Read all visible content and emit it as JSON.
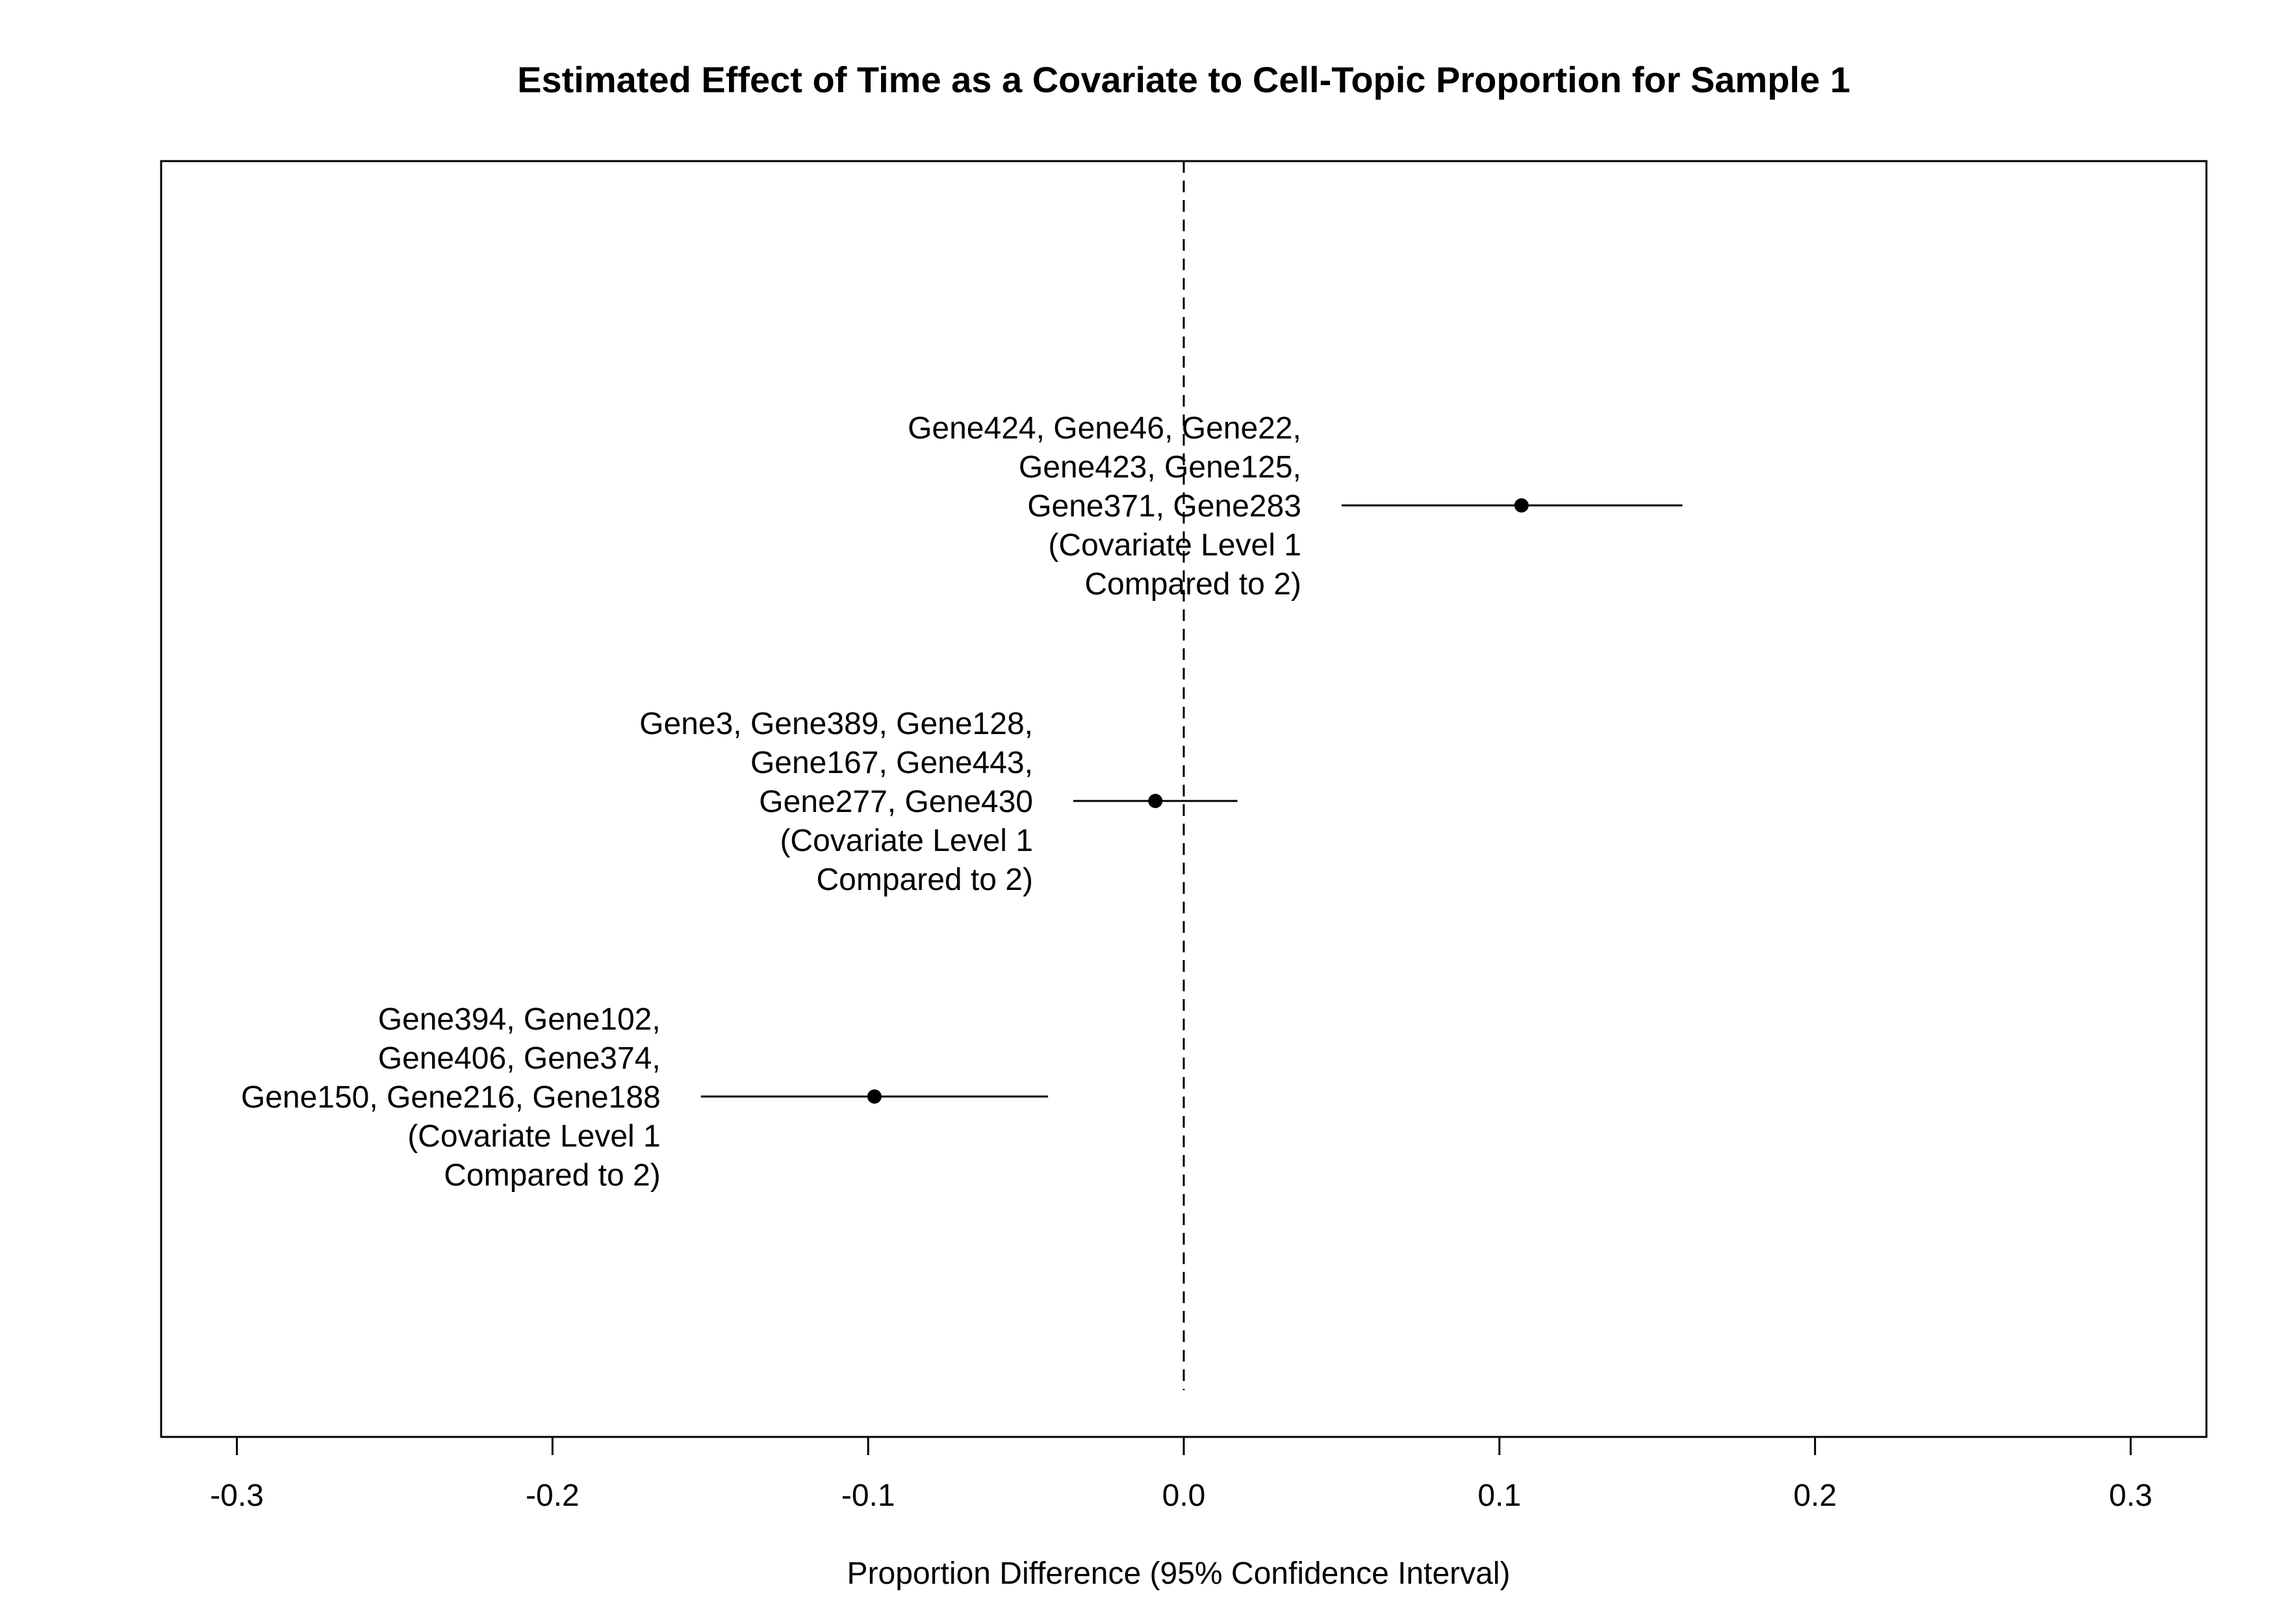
{
  "chart_data": {
    "type": "forest",
    "title": "Estimated Effect of Time as a Covariate to Cell-Topic Proportion for Sample 1",
    "xlabel": "Proportion Difference (95% Confidence Interval)",
    "xlim": [
      -0.324,
      0.324
    ],
    "x_ticks": [
      {
        "value": -0.3,
        "label": "-0.3"
      },
      {
        "value": -0.2,
        "label": "-0.2"
      },
      {
        "value": -0.1,
        "label": "-0.1"
      },
      {
        "value": 0.0,
        "label": "0.0"
      },
      {
        "value": 0.1,
        "label": "0.1"
      },
      {
        "value": 0.2,
        "label": "0.2"
      },
      {
        "value": 0.3,
        "label": "0.3"
      }
    ],
    "reference_line": 0,
    "reference_line_style": "dashed",
    "grid": false,
    "rows": [
      {
        "label_lines": [
          "Gene424, Gene46, Gene22,",
          "Gene423, Gene125,",
          "Gene371, Gene283",
          "(Covariate Level 1",
          "Compared to 2)"
        ],
        "estimate": 0.107,
        "ci_low": 0.05,
        "ci_high": 0.158
      },
      {
        "label_lines": [
          "Gene3, Gene389, Gene128,",
          "Gene167, Gene443,",
          "Gene277, Gene430",
          "(Covariate Level 1",
          "Compared to 2)"
        ],
        "estimate": -0.009,
        "ci_low": -0.035,
        "ci_high": 0.017
      },
      {
        "label_lines": [
          "Gene394, Gene102,",
          "Gene406, Gene374,",
          "Gene150, Gene216, Gene188",
          "(Covariate Level 1",
          "Compared to 2)"
        ],
        "estimate": -0.098,
        "ci_low": -0.153,
        "ci_high": -0.043
      }
    ]
  }
}
